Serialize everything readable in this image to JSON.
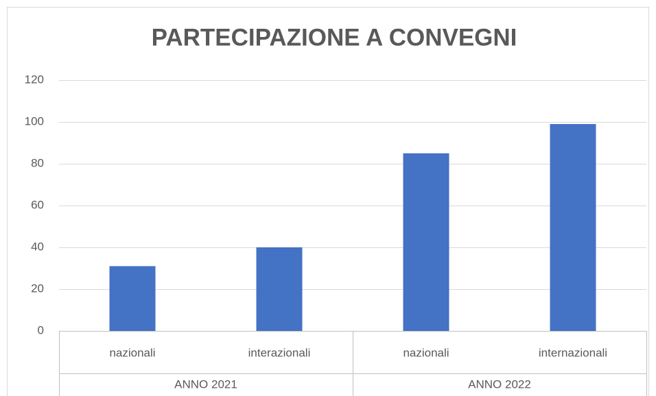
{
  "chart_data": {
    "type": "bar",
    "title": "PARTECIPAZIONE A CONVEGNI",
    "categories": [
      "nazionali",
      "interazionali",
      "nazionali",
      "internazionali"
    ],
    "category_groups": [
      "ANNO 2021",
      "ANNO 2022"
    ],
    "values": [
      31,
      40,
      85,
      99
    ],
    "color": "#4472c4",
    "ylim": [
      0,
      120
    ],
    "yticks": [
      0,
      20,
      40,
      60,
      80,
      100,
      120
    ],
    "grid": true
  }
}
